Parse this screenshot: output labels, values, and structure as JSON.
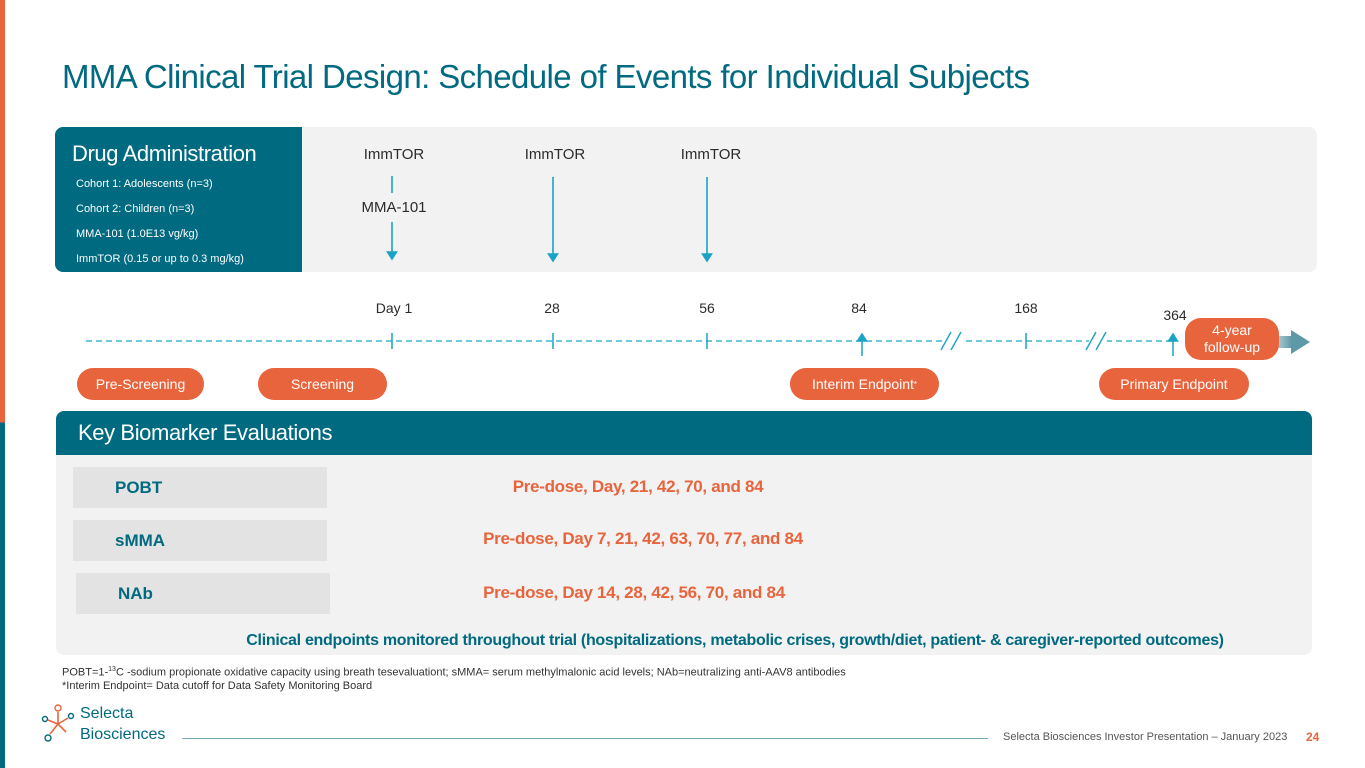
{
  "title": "MMA Clinical Trial Design: Schedule of Events for Individual Subjects",
  "drug_admin": {
    "heading": "Drug Administration",
    "lines": [
      "Cohort 1: Adolescents (n=3)",
      "Cohort 2: Children (n=3)",
      "MMA-101 (1.0E13 vg/kg)",
      "ImmTOR (0.15 or up to 0.3 mg/kg)"
    ],
    "doses": [
      {
        "label": "ImmTOR",
        "extra": "MMA-101"
      },
      {
        "label": "ImmTOR"
      },
      {
        "label": "ImmTOR"
      }
    ]
  },
  "timeline": {
    "days": [
      "Day 1",
      "28",
      "56",
      "84",
      "168",
      "364"
    ],
    "followup_line1": "4-year",
    "followup_line2": "follow-up",
    "pills": {
      "prescreening": "Pre-Screening",
      "screening": "Screening",
      "interim": "Interim Endpoint",
      "interim_mark": "*",
      "primary": "Primary Endpoint"
    }
  },
  "biomarkers": {
    "heading": "Key Biomarker Evaluations",
    "rows": [
      {
        "label": "POBT",
        "schedule": "Pre-dose, Day, 21, 42, 70, and 84"
      },
      {
        "label": "sMMA",
        "schedule": "Pre-dose, Day 7, 21, 42, 63, 70, 77, and 84"
      },
      {
        "label": "NAb",
        "schedule": "Pre-dose, Day 14, 28, 42, 56, 70, and 84"
      }
    ],
    "clinical_note": "Clinical endpoints monitored throughout trial (hospitalizations, metabolic crises, growth/diet, patient- & caregiver-reported outcomes)"
  },
  "footnotes": {
    "line1_pre": "POBT=1-",
    "line1_sup": "13",
    "line1_post": "C -sodium propionate oxidative capacity using breath tesevaluationt; sMMA= serum methylmalonic acid levels; NAb=neutralizing anti-AAV8 antibodies",
    "line2": "*Interim Endpoint= Data cutoff for Data Safety Monitoring Board"
  },
  "footer": {
    "logo_line1": "Selecta",
    "logo_line2": "Biosciences",
    "text": "Selecta Biosciences Investor Presentation – January 2023",
    "page": "24"
  },
  "colors": {
    "teal": "#006a80",
    "orange": "#e8643c",
    "panel": "#f2f2f2",
    "arrow": "#1aa3c4"
  }
}
